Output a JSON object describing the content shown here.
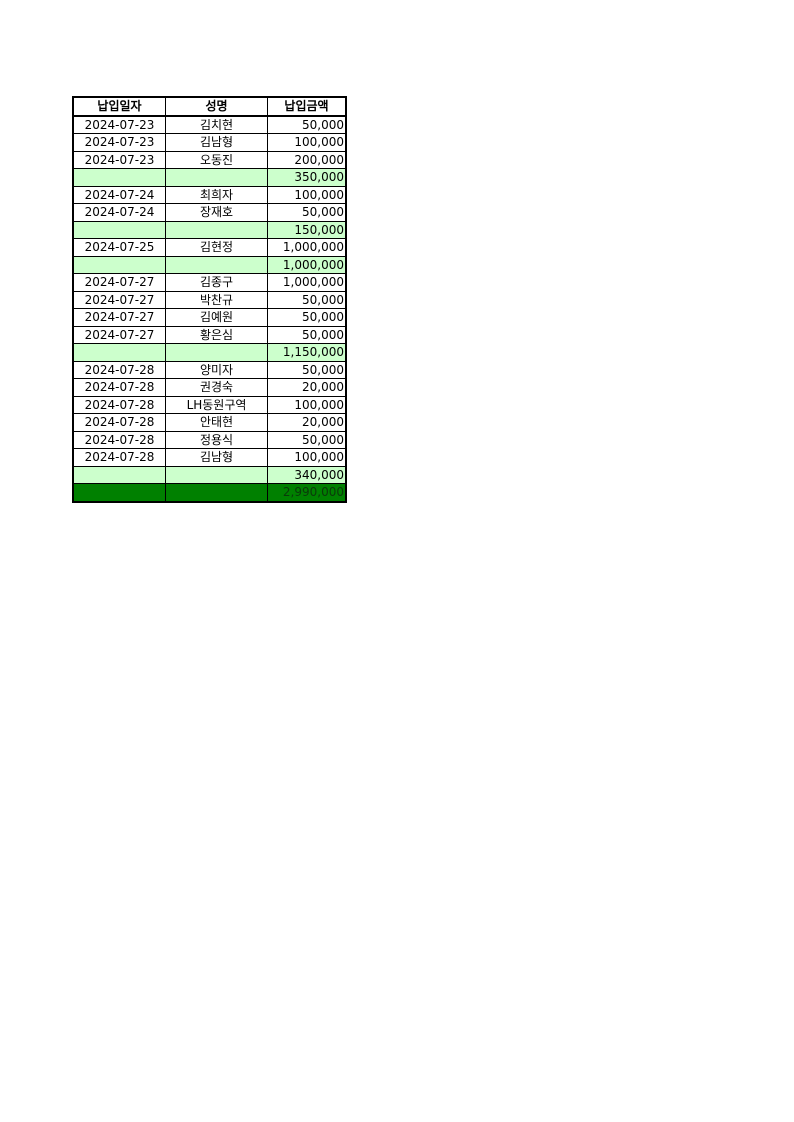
{
  "headers": [
    "납입일자",
    "성명",
    "납입금액"
  ],
  "colors": {
    "subtotal": "#ccffcc",
    "total": "#008000"
  },
  "rows": [
    {
      "type": "entry",
      "date": "2024-07-23",
      "name": "김치현",
      "amount": "50,000"
    },
    {
      "type": "entry",
      "date": "2024-07-23",
      "name": "김남형",
      "amount": "100,000"
    },
    {
      "type": "entry",
      "date": "2024-07-23",
      "name": "오동진",
      "amount": "200,000"
    },
    {
      "type": "subtotal",
      "date": "",
      "name": "",
      "amount": "350,000"
    },
    {
      "type": "entry",
      "date": "2024-07-24",
      "name": "최희자",
      "amount": "100,000"
    },
    {
      "type": "entry",
      "date": "2024-07-24",
      "name": "장재호",
      "amount": "50,000"
    },
    {
      "type": "subtotal",
      "date": "",
      "name": "",
      "amount": "150,000"
    },
    {
      "type": "entry",
      "date": "2024-07-25",
      "name": "김현정",
      "amount": "1,000,000"
    },
    {
      "type": "subtotal",
      "date": "",
      "name": "",
      "amount": "1,000,000"
    },
    {
      "type": "entry",
      "date": "2024-07-27",
      "name": "김종구",
      "amount": "1,000,000"
    },
    {
      "type": "entry",
      "date": "2024-07-27",
      "name": "박찬규",
      "amount": "50,000"
    },
    {
      "type": "entry",
      "date": "2024-07-27",
      "name": "김예원",
      "amount": "50,000"
    },
    {
      "type": "entry",
      "date": "2024-07-27",
      "name": "황은심",
      "amount": "50,000"
    },
    {
      "type": "subtotal",
      "date": "",
      "name": "",
      "amount": "1,150,000"
    },
    {
      "type": "entry",
      "date": "2024-07-28",
      "name": "양미자",
      "amount": "50,000"
    },
    {
      "type": "entry",
      "date": "2024-07-28",
      "name": "권경숙",
      "amount": "20,000"
    },
    {
      "type": "entry",
      "date": "2024-07-28",
      "name": "LH동원구역",
      "amount": "100,000"
    },
    {
      "type": "entry",
      "date": "2024-07-28",
      "name": "안태현",
      "amount": "20,000"
    },
    {
      "type": "entry",
      "date": "2024-07-28",
      "name": "정용식",
      "amount": "50,000"
    },
    {
      "type": "entry",
      "date": "2024-07-28",
      "name": "김남형",
      "amount": "100,000"
    },
    {
      "type": "subtotal",
      "date": "",
      "name": "",
      "amount": "340,000"
    },
    {
      "type": "total",
      "date": "",
      "name": "",
      "amount": "2,990,000"
    }
  ]
}
